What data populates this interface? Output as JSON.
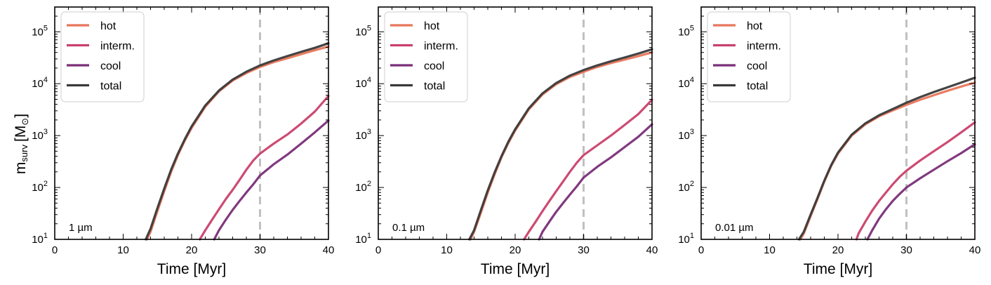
{
  "figure": {
    "xlabel": "Time [Myr]",
    "ylabel_main": "m",
    "ylabel_sub": "surv",
    "ylabel_unit_open": "[M",
    "ylabel_unit_sym": "⊙",
    "ylabel_unit_close": "]"
  },
  "colors": {
    "hot": "#e8765a",
    "interm": "#c9416c",
    "cool": "#7a2e78",
    "total": "#3a3a3a",
    "vline": "#c0c0c0"
  },
  "legend": [
    "hot",
    "interm.",
    "cool",
    "total"
  ],
  "chart_data": [
    {
      "type": "line",
      "annotation": "1 µm",
      "xlim": [
        0,
        40
      ],
      "ylim": [
        10,
        300000
      ],
      "yscale": "log",
      "xticks": [
        0,
        10,
        20,
        30,
        40
      ],
      "yticks": [
        {
          "value": 10,
          "label": "10",
          "exp": "1"
        },
        {
          "value": 100,
          "label": "10",
          "exp": "2"
        },
        {
          "value": 1000,
          "label": "10",
          "exp": "3"
        },
        {
          "value": 10000,
          "label": "10",
          "exp": "4"
        },
        {
          "value": 100000,
          "label": "10",
          "exp": "5"
        }
      ],
      "vline_x": 30,
      "series": [
        {
          "name": "hot",
          "x": [
            13.5,
            14,
            15,
            16,
            17,
            18,
            19,
            20,
            22,
            24,
            26,
            28,
            30,
            32,
            34,
            36,
            38,
            40
          ],
          "y": [
            10,
            14,
            35,
            85,
            200,
            420,
            800,
            1400,
            3600,
            7100,
            11500,
            16000,
            21000,
            26000,
            31000,
            37000,
            44000,
            52000
          ]
        },
        {
          "name": "interm.",
          "x": [
            21.2,
            22,
            23,
            24,
            25,
            26,
            27,
            28,
            29,
            30,
            32,
            34,
            36,
            38,
            40
          ],
          "y": [
            10,
            15,
            24,
            38,
            60,
            90,
            140,
            220,
            330,
            450,
            700,
            1050,
            1700,
            2900,
            5800
          ]
        },
        {
          "name": "cool",
          "x": [
            23.3,
            24,
            25,
            26,
            27,
            28,
            29,
            30,
            32,
            34,
            36,
            38,
            40
          ],
          "y": [
            10,
            15,
            24,
            37,
            55,
            80,
            115,
            170,
            280,
            430,
            700,
            1150,
            1950
          ]
        },
        {
          "name": "total",
          "x": [
            13.3,
            14,
            15,
            16,
            17,
            18,
            19,
            20,
            22,
            24,
            26,
            28,
            30,
            32,
            34,
            36,
            38,
            40
          ],
          "y": [
            10,
            16,
            40,
            95,
            220,
            450,
            850,
            1500,
            3800,
            7400,
            12000,
            17000,
            22500,
            28000,
            34000,
            41000,
            49000,
            60000
          ]
        }
      ]
    },
    {
      "type": "line",
      "annotation": "0.1 µm",
      "xlim": [
        0,
        40
      ],
      "ylim": [
        10,
        300000
      ],
      "yscale": "log",
      "xticks": [
        0,
        10,
        20,
        30,
        40
      ],
      "yticks": [
        {
          "value": 10,
          "label": "10",
          "exp": "1"
        },
        {
          "value": 100,
          "label": "10",
          "exp": "2"
        },
        {
          "value": 1000,
          "label": "10",
          "exp": "3"
        },
        {
          "value": 10000,
          "label": "10",
          "exp": "4"
        },
        {
          "value": 100000,
          "label": "10",
          "exp": "5"
        }
      ],
      "vline_x": 30,
      "series": [
        {
          "name": "hot",
          "x": [
            13.5,
            14,
            15,
            16,
            17,
            18,
            19,
            20,
            22,
            24,
            26,
            28,
            30,
            32,
            34,
            36,
            38,
            40
          ],
          "y": [
            10,
            14,
            33,
            80,
            180,
            380,
            720,
            1250,
            3200,
            6200,
            9800,
            13500,
            17000,
            21000,
            25000,
            29000,
            34000,
            40000
          ]
        },
        {
          "name": "interm.",
          "x": [
            21.3,
            22,
            23,
            24,
            25,
            26,
            27,
            28,
            29,
            30,
            32,
            34,
            36,
            38,
            40
          ],
          "y": [
            10,
            14,
            22,
            35,
            55,
            85,
            130,
            200,
            300,
            420,
            650,
            1000,
            1600,
            2600,
            4900
          ]
        },
        {
          "name": "cool",
          "x": [
            23.5,
            24,
            25,
            26,
            27,
            28,
            29,
            30,
            32,
            34,
            36,
            38,
            40
          ],
          "y": [
            10,
            14,
            22,
            34,
            50,
            73,
            105,
            155,
            250,
            380,
            600,
            950,
            1650
          ]
        },
        {
          "name": "total",
          "x": [
            13.3,
            14,
            15,
            16,
            17,
            18,
            19,
            20,
            22,
            24,
            26,
            28,
            30,
            32,
            34,
            36,
            38,
            40
          ],
          "y": [
            10,
            15,
            37,
            88,
            195,
            400,
            760,
            1320,
            3350,
            6500,
            10300,
            14300,
            18300,
            22500,
            27000,
            32000,
            38000,
            46000
          ]
        }
      ]
    },
    {
      "type": "line",
      "annotation": "0.01 µm",
      "xlim": [
        0,
        40
      ],
      "ylim": [
        10,
        300000
      ],
      "yscale": "log",
      "xticks": [
        0,
        10,
        20,
        30,
        40
      ],
      "yticks": [
        {
          "value": 10,
          "label": "10",
          "exp": "1"
        },
        {
          "value": 100,
          "label": "10",
          "exp": "2"
        },
        {
          "value": 1000,
          "label": "10",
          "exp": "3"
        },
        {
          "value": 10000,
          "label": "10",
          "exp": "4"
        },
        {
          "value": 100000,
          "label": "10",
          "exp": "5"
        }
      ],
      "vline_x": 30,
      "series": [
        {
          "name": "hot",
          "x": [
            14.5,
            15,
            16,
            17,
            18,
            19,
            20,
            22,
            24,
            26,
            28,
            30,
            32,
            34,
            36,
            38,
            40
          ],
          "y": [
            10,
            13,
            28,
            60,
            130,
            260,
            450,
            1000,
            1650,
            2350,
            3050,
            3900,
            4900,
            6000,
            7300,
            8800,
            10500
          ]
        },
        {
          "name": "interm.",
          "x": [
            22.7,
            23,
            24,
            25,
            26,
            27,
            28,
            29,
            30,
            32,
            34,
            36,
            38,
            40
          ],
          "y": [
            10,
            13,
            22,
            36,
            55,
            80,
            115,
            160,
            210,
            330,
            500,
            750,
            1150,
            1800
          ]
        },
        {
          "name": "cool",
          "x": [
            24.3,
            25,
            26,
            27,
            28,
            29,
            30,
            32,
            34,
            36,
            38,
            40
          ],
          "y": [
            10,
            15,
            25,
            38,
            55,
            75,
            100,
            150,
            220,
            320,
            460,
            680
          ]
        },
        {
          "name": "total",
          "x": [
            14.3,
            15,
            16,
            17,
            18,
            19,
            20,
            22,
            24,
            26,
            28,
            30,
            32,
            34,
            36,
            38,
            40
          ],
          "y": [
            10,
            14,
            30,
            63,
            135,
            270,
            470,
            1040,
            1720,
            2460,
            3250,
            4300,
            5500,
            6900,
            8500,
            10500,
            13000
          ]
        }
      ]
    }
  ]
}
